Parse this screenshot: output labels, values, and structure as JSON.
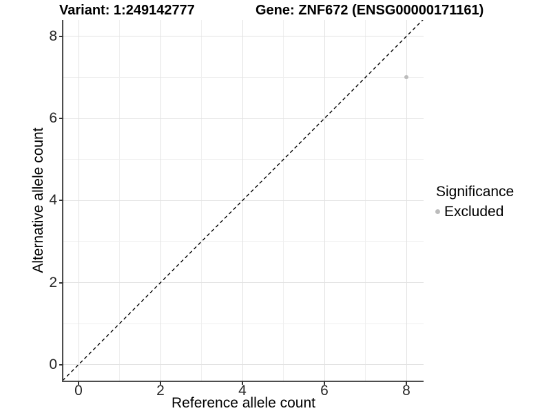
{
  "chart_data": {
    "type": "scatter",
    "titles": [
      {
        "id": "variant",
        "text": "Variant: 1:249142777"
      },
      {
        "id": "gene",
        "text": "Gene: ZNF672 (ENSG00000171161)"
      }
    ],
    "xlabel": "Reference allele count",
    "ylabel": "Alternative allele count",
    "xlim": [
      -0.37,
      8.42
    ],
    "ylim": [
      -0.39,
      8.4
    ],
    "x_ticks": [
      0,
      2,
      4,
      6,
      8
    ],
    "y_ticks": [
      0,
      2,
      4,
      6,
      8
    ],
    "x_minor_gridlines": [
      1,
      3,
      5,
      7
    ],
    "y_minor_gridlines": [
      1,
      3,
      5,
      7
    ],
    "grid": "on",
    "legend_position": "right",
    "series": [
      {
        "name": "Excluded",
        "color": "#bcbcbc",
        "marker_size": 6,
        "points": [
          {
            "x": 8,
            "y": 7
          }
        ]
      }
    ],
    "reference_line": {
      "kind": "identity",
      "style": "dashed",
      "color": "#000000"
    },
    "legend": {
      "title": "Significance",
      "entries": [
        {
          "label": "Excluded",
          "color": "#bcbcbc"
        }
      ]
    }
  },
  "style": {
    "background": "#ffffff",
    "axis_line_color": "#4d4d4d",
    "tick_color": "#333333",
    "grid_major_color": "#e2e2e2",
    "grid_minor_color": "#efefef"
  }
}
